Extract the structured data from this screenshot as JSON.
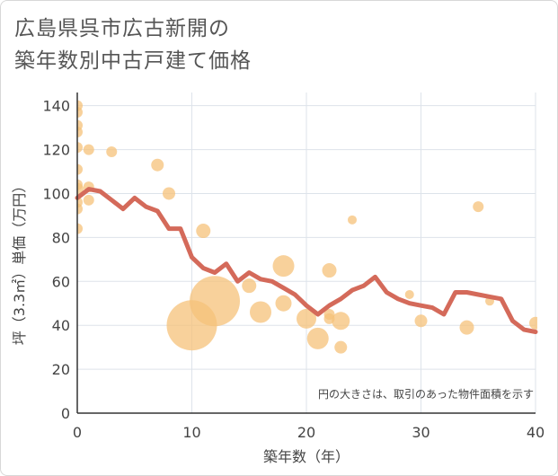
{
  "title": {
    "line1": "広島県呉市広古新開の",
    "line2": "築年数別中古戸建て価格"
  },
  "chart_data": {
    "type": "scatter",
    "xlabel": "築年数（年）",
    "ylabel": "坪（3.3㎡）単価（万円）",
    "xlim": [
      0,
      40
    ],
    "ylim": [
      0,
      146
    ],
    "xticks": [
      0,
      10,
      20,
      30,
      40
    ],
    "yticks": [
      0,
      20,
      40,
      60,
      80,
      100,
      120,
      140
    ],
    "note": "円の大きさは、取引のあった物件面積を示す",
    "colors": {
      "bubble": "#f5c27a",
      "line": "#d46a5a",
      "grid": "#dde3ea"
    },
    "bubbles": [
      {
        "x": 0,
        "y": 140,
        "r": 6
      },
      {
        "x": 0,
        "y": 137,
        "r": 6
      },
      {
        "x": 0,
        "y": 131,
        "r": 6
      },
      {
        "x": 0,
        "y": 128,
        "r": 6
      },
      {
        "x": 0,
        "y": 121,
        "r": 6
      },
      {
        "x": 0,
        "y": 111,
        "r": 6
      },
      {
        "x": 0,
        "y": 104,
        "r": 6
      },
      {
        "x": 0,
        "y": 102,
        "r": 7
      },
      {
        "x": 0,
        "y": 96,
        "r": 6
      },
      {
        "x": 0,
        "y": 93,
        "r": 6
      },
      {
        "x": 0,
        "y": 84,
        "r": 6
      },
      {
        "x": 1,
        "y": 120,
        "r": 6
      },
      {
        "x": 1,
        "y": 103,
        "r": 6
      },
      {
        "x": 1,
        "y": 97,
        "r": 6
      },
      {
        "x": 3,
        "y": 119,
        "r": 6
      },
      {
        "x": 7,
        "y": 113,
        "r": 7
      },
      {
        "x": 8,
        "y": 100,
        "r": 7
      },
      {
        "x": 10,
        "y": 40,
        "r": 28
      },
      {
        "x": 11,
        "y": 83,
        "r": 8
      },
      {
        "x": 12,
        "y": 51,
        "r": 28
      },
      {
        "x": 15,
        "y": 58,
        "r": 8
      },
      {
        "x": 16,
        "y": 46,
        "r": 12
      },
      {
        "x": 18,
        "y": 67,
        "r": 12
      },
      {
        "x": 18,
        "y": 50,
        "r": 9
      },
      {
        "x": 20,
        "y": 43,
        "r": 11
      },
      {
        "x": 21,
        "y": 34,
        "r": 12
      },
      {
        "x": 22,
        "y": 65,
        "r": 8
      },
      {
        "x": 22,
        "y": 45,
        "r": 6
      },
      {
        "x": 22,
        "y": 43,
        "r": 6
      },
      {
        "x": 23,
        "y": 42,
        "r": 10
      },
      {
        "x": 23,
        "y": 30,
        "r": 7
      },
      {
        "x": 24,
        "y": 88,
        "r": 5
      },
      {
        "x": 29,
        "y": 54,
        "r": 5
      },
      {
        "x": 30,
        "y": 42,
        "r": 7
      },
      {
        "x": 34,
        "y": 39,
        "r": 8
      },
      {
        "x": 35,
        "y": 94,
        "r": 6
      },
      {
        "x": 36,
        "y": 51,
        "r": 5
      },
      {
        "x": 40,
        "y": 41,
        "r": 7
      }
    ],
    "line": {
      "x": [
        0,
        1,
        2,
        3,
        4,
        5,
        6,
        7,
        8,
        9,
        10,
        11,
        12,
        13,
        14,
        15,
        16,
        17,
        18,
        19,
        20,
        21,
        22,
        23,
        24,
        25,
        26,
        27,
        28,
        29,
        30,
        31,
        32,
        33,
        34,
        35,
        36,
        37,
        38,
        39,
        40
      ],
      "y": [
        98,
        102,
        101,
        97,
        93,
        98,
        94,
        92,
        84,
        84,
        71,
        66,
        64,
        68,
        60,
        64,
        61,
        60,
        57,
        54,
        49,
        45,
        49,
        52,
        56,
        58,
        62,
        55,
        52,
        50,
        49,
        48,
        45,
        55,
        55,
        54,
        53,
        52,
        42,
        38,
        37
      ]
    }
  }
}
